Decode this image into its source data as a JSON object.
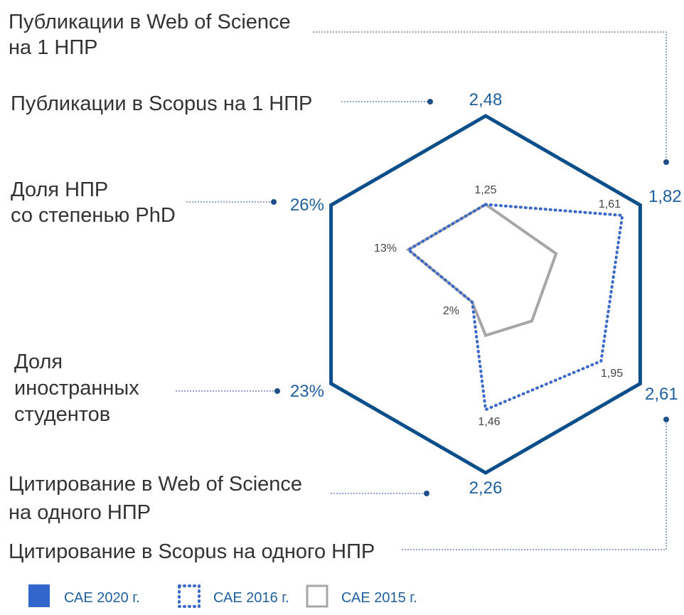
{
  "chart_data": {
    "type": "radar",
    "categories": [
      "Публикации в Scopus на 1 НПР",
      "Публикации в Web of Science\nна 1 НПР",
      "Цитирование в Scopus на одного НПР",
      "Цитирование в Web of Science\nна одного НПР",
      "Доля\nиностранных\nстудентов",
      "Доля НПР\nсо степенью PhD"
    ],
    "series": [
      {
        "name": "САЕ 2020 г.",
        "color": "#0b4f8a",
        "values": [
          2.48,
          1.82,
          2.61,
          2.26,
          23,
          26
        ],
        "value_labels": [
          "2,48",
          "1,82",
          "2,61",
          "2,26",
          "23%",
          "26%"
        ]
      },
      {
        "name": "САЕ 2016 г.",
        "color": "#3a68c8",
        "values": [
          1.25,
          1.61,
          1.95,
          1.46,
          2,
          13
        ],
        "value_labels": [
          "1,25",
          "1,61",
          "1,95",
          "1,46",
          "2%",
          "13%"
        ]
      },
      {
        "name": "САЕ 2015 г.",
        "color": "#a6a6a6",
        "values": [
          1.25,
          0.83,
          0.78,
          0.52,
          2,
          13
        ]
      }
    ]
  }
}
